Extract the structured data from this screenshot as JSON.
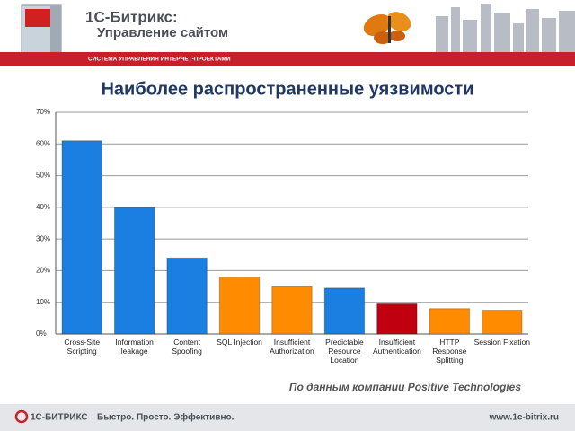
{
  "header": {
    "brand": "1С-Битрикс:",
    "product": "Управление сайтом",
    "tagline": "СИСТЕМА УПРАВЛЕНИЯ ИНТЕРНЕТ-ПРОЕКТАМИ"
  },
  "chart_data": {
    "type": "bar",
    "title": "Наиболее распространенные уязвимости",
    "categories": [
      "Cross-Site Scripting",
      "Information leakage",
      "Content Spoofing",
      "SQL Injection",
      "Insufficient Authorization",
      "Predictable Resource Location",
      "Insufficient Authentication",
      "HTTP Response Splitting",
      "Session Fixation"
    ],
    "values": [
      61,
      40,
      24,
      18,
      15,
      14.5,
      9.5,
      8,
      7.5
    ],
    "colors": [
      "#1a7fe0",
      "#1a7fe0",
      "#1a7fe0",
      "#ff8c00",
      "#ff8c00",
      "#1a7fe0",
      "#c00010",
      "#ff8c00",
      "#ff8c00"
    ],
    "ylim": [
      0,
      70
    ],
    "yticks": [
      {
        "value": 0,
        "label": "0%"
      },
      {
        "value": 10,
        "label": "10%"
      },
      {
        "value": 20,
        "label": "20%"
      },
      {
        "value": 30,
        "label": "30%"
      },
      {
        "value": 40,
        "label": "40%"
      },
      {
        "value": 50,
        "label": "50%"
      },
      {
        "value": 60,
        "label": "60%"
      },
      {
        "value": 70,
        "label": "70%"
      }
    ],
    "grid": true,
    "source": "По данным компании Positive Technologies"
  },
  "footer": {
    "brand": "1С-БИТРИКС",
    "slogan": "Быстро. Просто. Эффективно.",
    "url": "www.1c-bitrix.ru"
  }
}
